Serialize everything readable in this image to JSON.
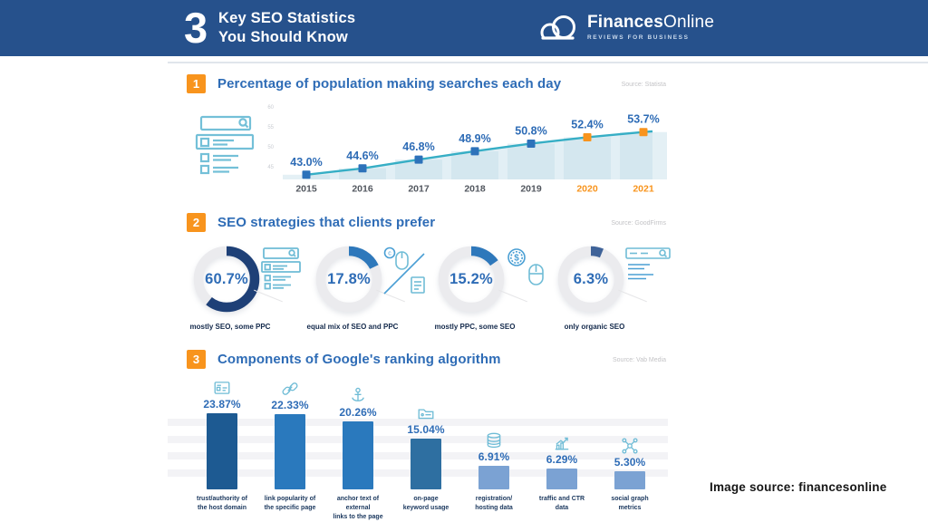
{
  "header": {
    "count": "3",
    "title_line1": "Key SEO Statistics",
    "title_line2": "You Should Know",
    "logo": {
      "brand_bold": "Finances",
      "brand_regular": "Online",
      "tagline": "REVIEWS FOR BUSINESS"
    }
  },
  "sections": [
    {
      "number": "1",
      "title": "Percentage of population making searches each day",
      "source": "Source: Statista"
    },
    {
      "number": "2",
      "title": "SEO strategies that clients prefer",
      "source": "Source: GoodFirms"
    },
    {
      "number": "3",
      "title": "Components of Google's ranking algorithm",
      "source": "Source: Vab Media"
    }
  ],
  "footer": {
    "credit": "Image source: financesonline"
  },
  "colors": {
    "header_bg": "#26518C",
    "accent_orange": "#F8941D",
    "title_blue": "#2E6CB6",
    "line_teal": "#36AEC5",
    "marker_blue": "#2D72BA",
    "area_fill": "#D8EAF2",
    "band_fill": "#C3DDE9",
    "donut_ring": "#EBEBEE",
    "icon_blue": "#6FBCD6",
    "stripe_gray": "#F3F3F6"
  },
  "chart_data": [
    {
      "type": "line",
      "title": "Percentage of population making searches each day",
      "source": "Source: Statista",
      "x": [
        "2015",
        "2016",
        "2017",
        "2018",
        "2019",
        "2020",
        "2021"
      ],
      "values": [
        43.0,
        44.6,
        46.8,
        48.9,
        50.8,
        52.4,
        53.7
      ],
      "labels": [
        "43.0%",
        "44.6%",
        "46.8%",
        "48.9%",
        "50.8%",
        "52.4%",
        "53.7%"
      ],
      "highlight_from_index": 5,
      "ylim": [
        40,
        60
      ],
      "yticks": [
        60,
        55,
        50,
        45
      ],
      "grid": false,
      "legend": "none",
      "marker": "square",
      "area": true
    },
    {
      "type": "pie",
      "subtype": "donut",
      "title": "SEO strategies that clients prefer",
      "source": "Source: GoodFirms",
      "items": [
        {
          "value": 60.7,
          "label": "60.7%",
          "caption": "mostly SEO, some PPC",
          "icon": "serp-results-icon",
          "color": "#1E4077"
        },
        {
          "value": 17.8,
          "label": "17.8%",
          "caption": "equal mix of SEO and PPC",
          "icon": "mouse-and-document-icon",
          "color": "#2E78BB"
        },
        {
          "value": 15.2,
          "label": "15.2%",
          "caption": "mostly PPC, some SEO",
          "icon": "coin-and-mouse-icon",
          "color": "#2E78BB"
        },
        {
          "value": 6.3,
          "label": "6.3%",
          "caption": "only organic SEO",
          "icon": "organic-search-icon",
          "color": "#3F6399"
        }
      ]
    },
    {
      "type": "bar",
      "title": "Components of Google's ranking algorithm",
      "source": "Source: Vab Media",
      "categories": [
        "trust/authority of\nthe host domain",
        "link popularity of\nthe specific page",
        "anchor text of external\nlinks to the page",
        "on-page\nkeyword usage",
        "registration/\nhosting data",
        "traffic and CTR\ndata",
        "social graph\nmetrics"
      ],
      "values": [
        23.87,
        22.33,
        20.26,
        15.04,
        6.91,
        6.29,
        5.3
      ],
      "labels": [
        "23.87%",
        "22.33%",
        "20.26%",
        "15.04%",
        "6.91%",
        "6.29%",
        "5.30%"
      ],
      "icons": [
        "id-card-icon",
        "link-icon",
        "anchor-icon",
        "folder-tag-icon",
        "database-icon",
        "growth-chart-icon",
        "social-graph-icon"
      ],
      "bar_colors": [
        "#1D5A92",
        "#2A79BD",
        "#2A79BD",
        "#2E6FA1",
        "#7BA2D3",
        "#7BA2D3",
        "#7BA2D3"
      ],
      "ylim": [
        0,
        25
      ],
      "grid": "subtle-stripes"
    }
  ]
}
